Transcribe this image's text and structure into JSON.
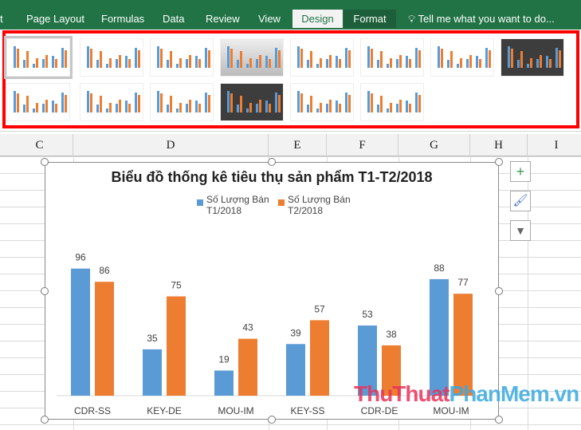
{
  "ribbon": {
    "tabs": [
      "t",
      "Page Layout",
      "Formulas",
      "Data",
      "Review",
      "View",
      "Design",
      "Format"
    ],
    "active_tab": "Design",
    "tell_me": "Tell me what you want to do..."
  },
  "gallery": {
    "styles_count": 14,
    "selected_index": 0
  },
  "columns": [
    "C",
    "D",
    "E",
    "F",
    "G",
    "H",
    "I"
  ],
  "chart_data": {
    "type": "bar",
    "title": "Biểu đồ thống kê tiêu thụ sản phẩm T1-T2/2018",
    "categories": [
      "CDR-SS",
      "KEY-DE",
      "MOU-IM",
      "KEY-SS",
      "CDR-DE",
      "MOU-IM"
    ],
    "series": [
      {
        "name": "Số Lượng Bán T1/2018",
        "values": [
          96,
          35,
          19,
          39,
          53,
          88
        ],
        "color": "#5b9bd5"
      },
      {
        "name": "Số Lượng Bán T2/2018",
        "values": [
          86,
          75,
          43,
          57,
          38,
          77
        ],
        "color": "#ed7d31"
      }
    ],
    "legend": "top",
    "grid": false,
    "data_labels": true,
    "ylim": [
      0,
      100
    ]
  },
  "chart_buttons": [
    "chart-elements",
    "chart-styles",
    "chart-filters"
  ],
  "watermark": {
    "part1": "ThuThuat",
    "part2": "PhanMem.vn"
  }
}
